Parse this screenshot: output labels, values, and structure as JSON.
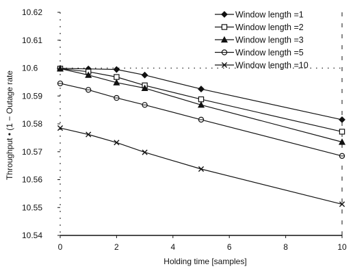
{
  "chart_data": {
    "type": "line",
    "title": "",
    "xlabel": "Holding time [samples]",
    "ylabel": "Throughput • (1 − Outage rate",
    "xlim": [
      0,
      10
    ],
    "ylim": [
      10.54,
      10.62
    ],
    "x_ticks": [
      "0",
      "2",
      "4",
      "6",
      "8",
      "10"
    ],
    "y_ticks": [
      "10.54",
      "10.55",
      "10.56",
      "10.57",
      "10.58",
      "10.59",
      "10.6",
      "10.61",
      "10.62"
    ],
    "grid": "dotted reference line at 10.6",
    "legend_position": "top-right",
    "series": [
      {
        "name": "Window length =1",
        "marker": "diamond",
        "x": [
          0,
          1,
          2,
          3,
          5,
          10
        ],
        "values": [
          10.5999,
          10.5997,
          10.5995,
          10.5975,
          10.5925,
          10.5815
        ]
      },
      {
        "name": "Window length =2",
        "marker": "square",
        "x": [
          0,
          1,
          2,
          3,
          5,
          10
        ],
        "values": [
          10.5998,
          10.5987,
          10.5968,
          10.5938,
          10.5888,
          10.5772
        ]
      },
      {
        "name": "Window length =3",
        "marker": "triangle",
        "x": [
          0,
          1,
          2,
          3,
          5,
          10
        ],
        "values": [
          10.5998,
          10.5975,
          10.5948,
          10.5928,
          10.5868,
          10.5735
        ]
      },
      {
        "name": "Window length =5",
        "marker": "circle",
        "x": [
          0,
          1,
          2,
          3,
          5,
          10
        ],
        "values": [
          10.5945,
          10.5922,
          10.5893,
          10.5868,
          10.5815,
          10.5685
        ]
      },
      {
        "name": "Window length =10",
        "marker": "x",
        "x": [
          0,
          1,
          2,
          3,
          5,
          10
        ],
        "values": [
          10.5785,
          10.5762,
          10.5733,
          10.5698,
          10.5638,
          10.5512
        ]
      }
    ]
  }
}
